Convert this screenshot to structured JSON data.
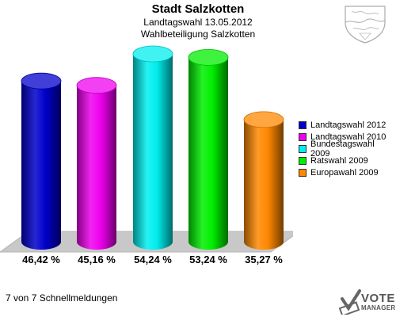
{
  "header": {
    "title": "Stadt Salzkotten",
    "subtitle_1": "Landtagswahl 13.05.2012",
    "subtitle_2": "Wahlbeteiligung Salzkotten"
  },
  "chart_data": {
    "type": "bar",
    "title": "Stadt Salzkotten",
    "subtitle": "Landtagswahl 13.05.2012 · Wahlbeteiligung Salzkotten",
    "categories": [
      "Landtagswahl 2012",
      "Landtagswahl 2010",
      "Bundestagswahl 2009",
      "Ratswahl 2009",
      "Europawahl 2009"
    ],
    "values": [
      46.42,
      45.16,
      54.24,
      53.24,
      35.27
    ],
    "value_labels": [
      "46,42 %",
      "45,16 %",
      "54,24 %",
      "53,24 %",
      "35,27 %"
    ],
    "colors": [
      "#0000cc",
      "#ee00ee",
      "#00eeee",
      "#00ee00",
      "#ff8800"
    ],
    "ylim": [
      0,
      60
    ],
    "grid": false,
    "legend_position": "right",
    "style": "3d-cylinder"
  },
  "legend": {
    "items": [
      {
        "label": "Landtagswahl 2012",
        "color": "#0000cc"
      },
      {
        "label": "Landtagswahl 2010",
        "color": "#ee00ee"
      },
      {
        "label": "Bundestagswahl 2009",
        "color": "#00eeee"
      },
      {
        "label": "Ratswahl 2009",
        "color": "#00ee00"
      },
      {
        "label": "Europawahl 2009",
        "color": "#ff8800"
      }
    ]
  },
  "footer": {
    "text": "7 von 7 Schnellmeldungen"
  },
  "branding": {
    "line1": "VOTE",
    "line2": "MANAGER",
    "icon": "checkmark-ballot-icon"
  },
  "crest": {
    "icon": "coat-of-arms-icon"
  }
}
